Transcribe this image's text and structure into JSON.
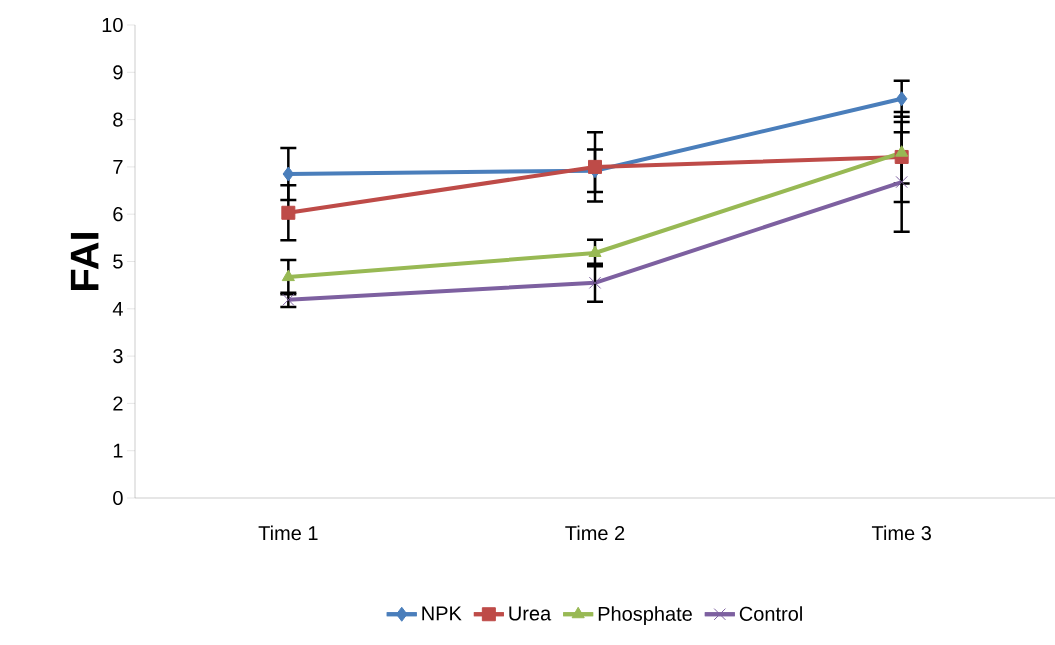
{
  "chart_data": {
    "type": "line",
    "ylabel": "FAI",
    "categories": [
      "Time 1",
      "Time 2",
      "Time 3"
    ],
    "series": [
      {
        "name": "NPK",
        "color": "#4a7ebb",
        "marker": "diamond",
        "values": [
          6.85,
          6.92,
          8.44
        ],
        "errors": [
          0.55,
          0.45,
          0.38
        ]
      },
      {
        "name": "Urea",
        "color": "#be4b48",
        "marker": "square",
        "values": [
          6.03,
          7.0,
          7.21
        ],
        "errors": [
          0.58,
          0.73,
          0.95
        ]
      },
      {
        "name": "Phosphate",
        "color": "#98b954",
        "marker": "triangle",
        "values": [
          4.67,
          5.18,
          7.3
        ],
        "errors": [
          0.36,
          0.28,
          0.65
        ]
      },
      {
        "name": "Control",
        "color": "#7d60a0",
        "marker": "cross",
        "values": [
          4.19,
          4.55,
          6.68
        ],
        "errors": [
          0.15,
          0.4,
          1.05
        ]
      }
    ],
    "ylim": [
      0,
      10
    ],
    "yticks": [
      0,
      1,
      2,
      3,
      4,
      5,
      6,
      7,
      8,
      9,
      10
    ],
    "grid": false,
    "legend": "bottom"
  }
}
